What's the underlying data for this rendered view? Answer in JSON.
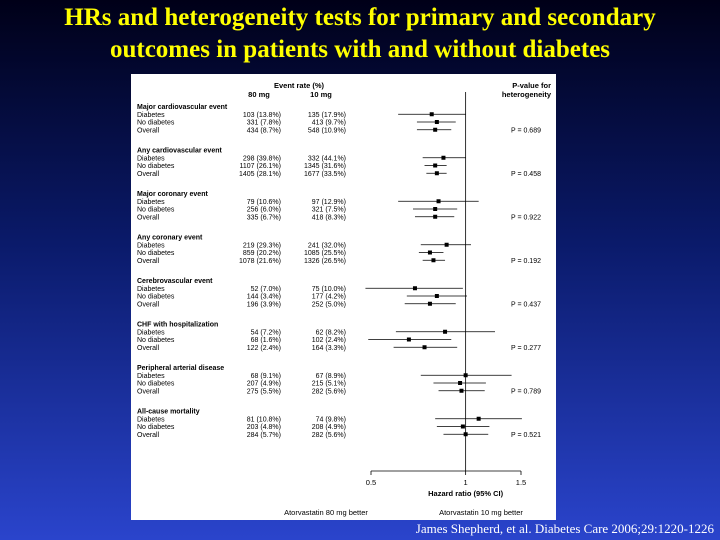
{
  "title": {
    "line1": "HRs and heterogeneity tests for primary and secondary",
    "line2": "outcomes in patients with and without diabetes"
  },
  "citation": "James Shepherd, et al. Diabetes Care 2006;29:1220-1226",
  "colors": {
    "title": "#ffff00",
    "background_top": "#000018",
    "background_bottom": "#2a44cc",
    "panel": "#ffffff"
  },
  "chart_data": {
    "type": "forest",
    "header": {
      "event_rate": "Event rate (%)",
      "col_80mg": "80 mg",
      "col_10mg": "10 mg",
      "pvalue_line1": "P-value for",
      "pvalue_line2": "heterogeneity"
    },
    "xaxis": {
      "scale": "log",
      "range": [
        0.5,
        1.5
      ],
      "ticks": [
        {
          "value": 0.5,
          "label": "0.5"
        },
        {
          "value": 1,
          "label": "1"
        },
        {
          "value": 1.5,
          "label": "1.5"
        }
      ],
      "label": "Hazard ratio (95% CI)",
      "left_note": "Atorvastatin 80 mg better",
      "right_note": "Atorvastatin 10 mg better"
    },
    "groups": [
      {
        "title": "Major cardiovascular event",
        "p": "P = 0.689",
        "rows": [
          {
            "label": "Diabetes",
            "a": "103 (13.8%)",
            "b": "135 (17.9%)",
            "hr": 0.78,
            "lo": 0.61,
            "hi": 1.0
          },
          {
            "label": "No diabetes",
            "a": "331 (7.8%)",
            "b": "413 (9.7%)",
            "hr": 0.81,
            "lo": 0.7,
            "hi": 0.93
          },
          {
            "label": "Overall",
            "a": "434 (8.7%)",
            "b": "548 (10.9%)",
            "hr": 0.8,
            "lo": 0.7,
            "hi": 0.9
          }
        ]
      },
      {
        "title": "Any cardiovascular event",
        "p": "P = 0.458",
        "rows": [
          {
            "label": "Diabetes",
            "a": "298 (39.8%)",
            "b": "332 (44.1%)",
            "hr": 0.85,
            "lo": 0.73,
            "hi": 1.0
          },
          {
            "label": "No diabetes",
            "a": "1107 (26.1%)",
            "b": "1345 (31.6%)",
            "hr": 0.8,
            "lo": 0.74,
            "hi": 0.87
          },
          {
            "label": "Overall",
            "a": "1405 (28.1%)",
            "b": "1677 (33.5%)",
            "hr": 0.81,
            "lo": 0.75,
            "hi": 0.87
          }
        ]
      },
      {
        "title": "Major coronary event",
        "p": "P = 0.922",
        "rows": [
          {
            "label": "Diabetes",
            "a": "79 (10.6%)",
            "b": "97 (12.9%)",
            "hr": 0.82,
            "lo": 0.61,
            "hi": 1.1
          },
          {
            "label": "No diabetes",
            "a": "256 (6.0%)",
            "b": "321 (7.5%)",
            "hr": 0.8,
            "lo": 0.68,
            "hi": 0.94
          },
          {
            "label": "Overall",
            "a": "335 (6.7%)",
            "b": "418 (8.3%)",
            "hr": 0.8,
            "lo": 0.69,
            "hi": 0.92
          }
        ]
      },
      {
        "title": "Any coronary event",
        "p": "P = 0.192",
        "rows": [
          {
            "label": "Diabetes",
            "a": "219 (29.3%)",
            "b": "241 (32.0%)",
            "hr": 0.87,
            "lo": 0.72,
            "hi": 1.04
          },
          {
            "label": "No diabetes",
            "a": "859 (20.2%)",
            "b": "1085 (25.5%)",
            "hr": 0.77,
            "lo": 0.71,
            "hi": 0.85
          },
          {
            "label": "Overall",
            "a": "1078 (21.6%)",
            "b": "1326 (26.5%)",
            "hr": 0.79,
            "lo": 0.73,
            "hi": 0.86
          }
        ]
      },
      {
        "title": "Cerebrovascular event",
        "p": "P = 0.437",
        "rows": [
          {
            "label": "Diabetes",
            "a": "52 (7.0%)",
            "b": "75 (10.0%)",
            "hr": 0.69,
            "lo": 0.48,
            "hi": 0.98
          },
          {
            "label": "No diabetes",
            "a": "144 (3.4%)",
            "b": "177 (4.2%)",
            "hr": 0.81,
            "lo": 0.65,
            "hi": 1.01
          },
          {
            "label": "Overall",
            "a": "196 (3.9%)",
            "b": "252 (5.0%)",
            "hr": 0.77,
            "lo": 0.64,
            "hi": 0.93
          }
        ]
      },
      {
        "title": "CHF with hospitalization",
        "p": "P = 0.277",
        "rows": [
          {
            "label": "Diabetes",
            "a": "54 (7.2%)",
            "b": "62 (8.2%)",
            "hr": 0.86,
            "lo": 0.6,
            "hi": 1.24
          },
          {
            "label": "No diabetes",
            "a": "68 (1.6%)",
            "b": "102 (2.4%)",
            "hr": 0.66,
            "lo": 0.49,
            "hi": 0.9
          },
          {
            "label": "Overall",
            "a": "122 (2.4%)",
            "b": "164 (3.3%)",
            "hr": 0.74,
            "lo": 0.59,
            "hi": 0.94
          }
        ]
      },
      {
        "title": "Peripheral arterial disease",
        "p": "P = 0.789",
        "rows": [
          {
            "label": "Diabetes",
            "a": "68 (9.1%)",
            "b": "67 (8.9%)",
            "hr": 1.0,
            "lo": 0.72,
            "hi": 1.4
          },
          {
            "label": "No diabetes",
            "a": "207 (4.9%)",
            "b": "215 (5.1%)",
            "hr": 0.96,
            "lo": 0.79,
            "hi": 1.16
          },
          {
            "label": "Overall",
            "a": "275 (5.5%)",
            "b": "282 (5.6%)",
            "hr": 0.97,
            "lo": 0.82,
            "hi": 1.15
          }
        ]
      },
      {
        "title": "All-cause mortality",
        "p": "P = 0.521",
        "rows": [
          {
            "label": "Diabetes",
            "a": "81 (10.8%)",
            "b": "74 (9.8%)",
            "hr": 1.1,
            "lo": 0.8,
            "hi": 1.51
          },
          {
            "label": "No diabetes",
            "a": "203 (4.8%)",
            "b": "208 (4.9%)",
            "hr": 0.98,
            "lo": 0.81,
            "hi": 1.19
          },
          {
            "label": "Overall",
            "a": "284 (5.7%)",
            "b": "282 (5.6%)",
            "hr": 1.0,
            "lo": 0.85,
            "hi": 1.18
          }
        ]
      }
    ]
  }
}
